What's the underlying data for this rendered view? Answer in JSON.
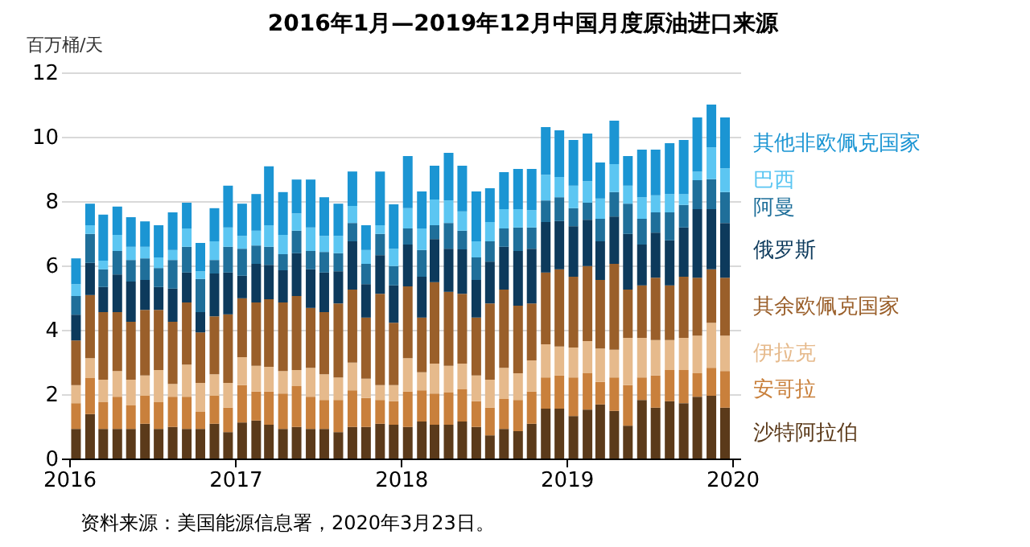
{
  "chart_data": {
    "type": "bar",
    "stacked": true,
    "title": "2016年1月—2019年12月中国月度原油进口来源",
    "ylabel": "百万桶/天",
    "annotations": [
      "资料来源：美国能源信息署，2020年3月23日。"
    ],
    "x": [
      "2016-01-16",
      "2016-02-16",
      "2016-03-16",
      "2016-04-16",
      "2016-05-16",
      "2016-06-16",
      "2016-07-16",
      "2016-08-16",
      "2016-09-16",
      "2016-10-16",
      "2016-11-16",
      "2016-12-16",
      "2017-01-16",
      "2017-02-16",
      "2017-03-16",
      "2017-04-16",
      "2017-05-16",
      "2017-06-16",
      "2017-07-16",
      "2017-08-16",
      "2017-09-16",
      "2017-10-16",
      "2017-11-16",
      "2017-12-16",
      "2018-01-16",
      "2018-02-16",
      "2018-03-16",
      "2018-04-16",
      "2018-05-16",
      "2018-06-16",
      "2018-07-16",
      "2018-08-16",
      "2018-09-16",
      "2018-10-16",
      "2018-11-16",
      "2018-12-16",
      "2019-01-16",
      "2019-02-16",
      "2019-03-16",
      "2019-04-16",
      "2019-05-16",
      "2019-06-16",
      "2019-07-16",
      "2019-08-16",
      "2019-09-16",
      "2019-10-16",
      "2019-11-16",
      "2019-12-16"
    ],
    "xlim": [
      "2016-01-01",
      "2020-01-01"
    ],
    "xticks": [
      "2016",
      "2017",
      "2018",
      "2019",
      "2020"
    ],
    "ylim": [
      0,
      12
    ],
    "yticks": [
      0,
      2,
      4,
      6,
      8,
      10,
      12
    ],
    "grid": "y",
    "legend": "right",
    "series": [
      {
        "name": "沙特阿拉伯",
        "color": "#5b3a1a",
        "values": [
          0.92,
          1.38,
          0.92,
          0.92,
          0.92,
          1.08,
          0.92,
          0.98,
          0.92,
          0.92,
          1.08,
          0.82,
          1.12,
          1.18,
          1.05,
          0.92,
          0.98,
          0.92,
          0.92,
          0.82,
          0.98,
          0.98,
          1.08,
          1.05,
          0.98,
          1.15,
          1.05,
          1.05,
          1.15,
          0.98,
          0.72,
          0.92,
          0.85,
          1.08,
          1.55,
          1.55,
          1.32,
          1.52,
          1.68,
          1.48,
          1.02,
          1.82,
          1.58,
          1.78,
          1.72,
          1.92,
          1.95,
          1.58
        ]
      },
      {
        "name": "安哥拉",
        "color": "#c9803c",
        "values": [
          0.8,
          1.12,
          0.83,
          1.0,
          0.73,
          0.87,
          0.83,
          0.94,
          1.0,
          0.53,
          0.87,
          0.76,
          1.16,
          0.9,
          1.03,
          1.1,
          1.27,
          1.0,
          0.9,
          1.0,
          1.14,
          0.9,
          0.74,
          0.73,
          1.1,
          0.97,
          0.97,
          1.0,
          1.0,
          0.8,
          0.86,
          0.93,
          0.97,
          1.0,
          0.97,
          1.03,
          1.2,
          1.13,
          0.7,
          1.04,
          1.26,
          0.7,
          1.0,
          0.97,
          1.03,
          0.73,
          0.87,
          1.14
        ]
      },
      {
        "name": "伊拉克",
        "color": "#e6ba8c",
        "values": [
          0.56,
          0.62,
          0.7,
          0.8,
          0.8,
          0.63,
          1.0,
          0.4,
          1.0,
          0.9,
          0.67,
          0.77,
          0.87,
          0.8,
          0.77,
          0.7,
          0.5,
          0.9,
          0.8,
          0.7,
          0.86,
          0.6,
          0.46,
          0.5,
          1.04,
          0.56,
          0.93,
          0.83,
          0.8,
          0.8,
          0.87,
          0.97,
          0.83,
          0.97,
          1.03,
          0.9,
          0.93,
          1.0,
          1.04,
          0.86,
          1.47,
          1.23,
          1.1,
          0.93,
          1.0,
          1.17,
          1.4,
          1.1
        ]
      },
      {
        "name": "其余欧佩克国家",
        "color": "#9a5f2a",
        "values": [
          1.39,
          1.96,
          2.1,
          1.83,
          1.8,
          2.04,
          1.87,
          1.93,
          1.93,
          1.57,
          1.8,
          2.13,
          1.83,
          1.97,
          2.1,
          2.13,
          2.3,
          1.86,
          1.93,
          2.3,
          2.27,
          1.9,
          2.84,
          1.94,
          2.23,
          1.7,
          2.53,
          2.3,
          2.17,
          1.8,
          2.37,
          2.43,
          2.1,
          1.77,
          2.23,
          2.4,
          2.2,
          2.33,
          2.13,
          2.67,
          1.5,
          1.63,
          1.94,
          1.7,
          1.9,
          1.8,
          1.66,
          1.8
        ]
      },
      {
        "name": "俄罗斯",
        "color": "#0d3a5c",
        "values": [
          0.8,
          1.0,
          0.78,
          1.17,
          1.25,
          0.93,
          0.71,
          1.03,
          0.93,
          0.63,
          1.33,
          1.3,
          0.7,
          1.2,
          1.07,
          1.0,
          1.33,
          1.2,
          1.23,
          1.0,
          1.5,
          1.04,
          1.2,
          1.16,
          1.3,
          1.27,
          1.34,
          1.34,
          1.38,
          1.17,
          1.3,
          1.33,
          1.7,
          1.7,
          1.57,
          1.5,
          1.57,
          1.44,
          1.2,
          1.47,
          1.73,
          1.27,
          1.4,
          1.4,
          1.53,
          2.13,
          1.87,
          1.7
        ]
      },
      {
        "name": "阿曼",
        "color": "#1f6f9a",
        "values": [
          0.58,
          0.9,
          0.55,
          0.73,
          0.67,
          0.67,
          0.59,
          0.89,
          0.8,
          1.03,
          0.42,
          0.8,
          0.84,
          0.57,
          0.56,
          0.5,
          0.7,
          0.57,
          0.64,
          0.56,
          0.57,
          0.63,
          0.66,
          0.6,
          0.5,
          0.83,
          0.43,
          0.8,
          0.58,
          0.7,
          0.63,
          0.57,
          0.73,
          0.66,
          0.67,
          0.74,
          0.56,
          0.53,
          0.7,
          0.76,
          0.94,
          0.8,
          0.63,
          0.87,
          0.7,
          0.9,
          0.93,
          0.96
        ]
      },
      {
        "name": "巴西",
        "color": "#5cc6f2",
        "values": [
          0.37,
          0.27,
          0.27,
          0.5,
          0.41,
          0.36,
          0.33,
          0.31,
          0.57,
          0.24,
          0.58,
          0.6,
          0.4,
          0.46,
          0.67,
          0.6,
          0.54,
          0.73,
          0.5,
          0.54,
          0.53,
          0.43,
          0.27,
          0.54,
          0.63,
          0.67,
          0.8,
          0.7,
          0.6,
          0.5,
          0.6,
          0.6,
          0.57,
          0.54,
          0.8,
          0.63,
          0.7,
          0.67,
          0.63,
          0.87,
          0.56,
          0.67,
          0.53,
          0.57,
          0.34,
          0.27,
          0.99,
          0.74
        ]
      },
      {
        "name": "其他非欧佩克国家",
        "color": "#1b95d3",
        "values": [
          0.8,
          0.67,
          1.43,
          0.88,
          0.92,
          0.79,
          1.0,
          1.17,
          0.8,
          0.88,
          1.03,
          1.3,
          1.0,
          1.14,
          1.83,
          1.33,
          1.05,
          1.49,
          1.2,
          1.0,
          1.07,
          0.77,
          1.67,
          1.38,
          1.62,
          1.15,
          1.05,
          1.48,
          1.42,
          1.55,
          1.05,
          1.15,
          1.25,
          1.28,
          1.48,
          1.45,
          1.42,
          1.48,
          1.12,
          1.35,
          0.92,
          1.48,
          1.42,
          1.58,
          1.68,
          1.68,
          1.33,
          1.58
        ]
      }
    ]
  }
}
